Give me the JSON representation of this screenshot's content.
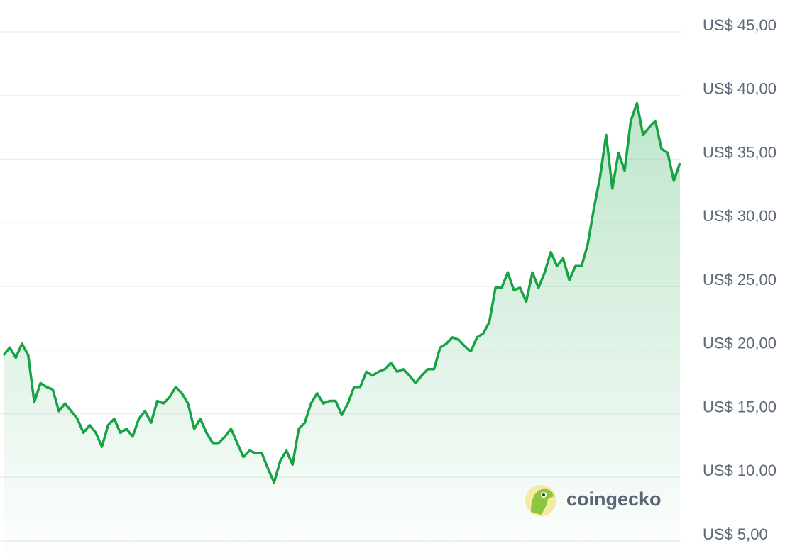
{
  "chart_data": {
    "type": "line",
    "color": "#17a345",
    "grid": true,
    "watermark": "coingecko",
    "ylim": [
      5000,
      45000
    ],
    "yticks": [
      {
        "value": 45000,
        "label": "US$ 45,00"
      },
      {
        "value": 40000,
        "label": "US$ 40,00"
      },
      {
        "value": 35000,
        "label": "US$ 35,00"
      },
      {
        "value": 30000,
        "label": "US$ 30,00"
      },
      {
        "value": 25000,
        "label": "US$ 25,00"
      },
      {
        "value": 20000,
        "label": "US$ 20,00"
      },
      {
        "value": 15000,
        "label": "US$ 15,00"
      },
      {
        "value": 10000,
        "label": "US$ 10,00"
      },
      {
        "value": 5000,
        "label": "US$ 5,00"
      }
    ],
    "values": [
      19600,
      20200,
      19400,
      20500,
      19600,
      15900,
      17400,
      17100,
      16900,
      15200,
      15800,
      15200,
      14600,
      13500,
      14100,
      13500,
      12400,
      14100,
      14600,
      13500,
      13800,
      13200,
      14600,
      15200,
      14300,
      16000,
      15800,
      16300,
      17100,
      16600,
      15800,
      13800,
      14600,
      13500,
      12700,
      12700,
      13200,
      13800,
      12700,
      11600,
      12100,
      11900,
      11900,
      10700,
      9600,
      11300,
      12100,
      11000,
      13800,
      14300,
      15800,
      16600,
      15800,
      16000,
      16000,
      14900,
      15800,
      17100,
      17100,
      18300,
      18000,
      18300,
      18500,
      19000,
      18300,
      18500,
      18000,
      17400,
      18000,
      18500,
      18500,
      20200,
      20500,
      21000,
      20800,
      20300,
      19900,
      21000,
      21300,
      22200,
      24900,
      24900,
      26100,
      24700,
      24900,
      23800,
      26100,
      24900,
      26100,
      27700,
      26600,
      27200,
      25500,
      26600,
      26600,
      28300,
      31100,
      33600,
      36900,
      32700,
      35500,
      34100,
      38000,
      39400,
      36900,
      37500,
      38000,
      35800,
      35500,
      33300,
      34700
    ]
  }
}
